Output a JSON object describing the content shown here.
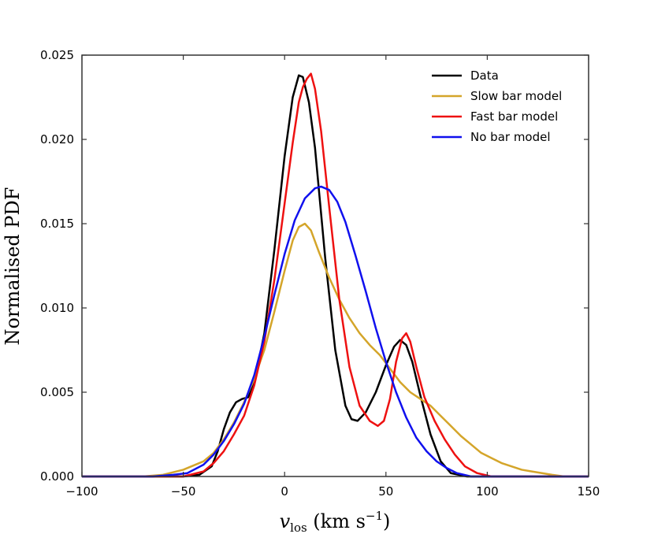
{
  "chart_data": {
    "type": "line",
    "title": "",
    "xlabel": "v_los (km s^-1)",
    "xlabel_parts": {
      "symbol": "v",
      "subscript": "los",
      "open": " (km s",
      "superscript": "−1",
      "close": ")"
    },
    "ylabel": "Normalised PDF",
    "xlim": [
      -100,
      150
    ],
    "ylim": [
      0,
      0.025
    ],
    "x_ticks": [
      -100,
      -50,
      0,
      50,
      100,
      150
    ],
    "x_tick_labels": [
      "−100",
      "−50",
      "0",
      "50",
      "100",
      "150"
    ],
    "y_ticks": [
      0,
      0.005,
      0.01,
      0.015,
      0.02,
      0.025
    ],
    "y_tick_labels": [
      "0.000",
      "0.005",
      "0.010",
      "0.015",
      "0.020",
      "0.025"
    ],
    "grid": false,
    "legend_position": "top-right",
    "series": [
      {
        "name": "Data",
        "color": "#000000",
        "points": [
          [
            -100,
            0
          ],
          [
            -50,
            0
          ],
          [
            -42,
            0.0001
          ],
          [
            -36,
            0.0006
          ],
          [
            -33,
            0.0015
          ],
          [
            -30,
            0.0028
          ],
          [
            -27,
            0.0038
          ],
          [
            -24,
            0.0044
          ],
          [
            -21,
            0.0046
          ],
          [
            -18,
            0.0047
          ],
          [
            -15,
            0.0055
          ],
          [
            -10,
            0.0085
          ],
          [
            -5,
            0.0135
          ],
          [
            0,
            0.019
          ],
          [
            4,
            0.0225
          ],
          [
            7,
            0.0238
          ],
          [
            9,
            0.0237
          ],
          [
            12,
            0.0222
          ],
          [
            15,
            0.0195
          ],
          [
            20,
            0.013
          ],
          [
            25,
            0.0075
          ],
          [
            30,
            0.0042
          ],
          [
            33,
            0.0034
          ],
          [
            36,
            0.0033
          ],
          [
            40,
            0.0038
          ],
          [
            45,
            0.005
          ],
          [
            50,
            0.0066
          ],
          [
            54,
            0.0077
          ],
          [
            57,
            0.0081
          ],
          [
            60,
            0.0078
          ],
          [
            63,
            0.0068
          ],
          [
            67,
            0.0048
          ],
          [
            72,
            0.0025
          ],
          [
            77,
            0.0009
          ],
          [
            82,
            0.0002
          ],
          [
            90,
            0
          ],
          [
            150,
            0
          ]
        ]
      },
      {
        "name": "Slow bar model",
        "color": "#d4a52a",
        "points": [
          [
            -100,
            0
          ],
          [
            -70,
            0
          ],
          [
            -60,
            0.0001
          ],
          [
            -50,
            0.0004
          ],
          [
            -40,
            0.0009
          ],
          [
            -35,
            0.0014
          ],
          [
            -30,
            0.0022
          ],
          [
            -25,
            0.0032
          ],
          [
            -20,
            0.0044
          ],
          [
            -15,
            0.0058
          ],
          [
            -10,
            0.0075
          ],
          [
            -5,
            0.0098
          ],
          [
            0,
            0.0122
          ],
          [
            4,
            0.014
          ],
          [
            7,
            0.0148
          ],
          [
            10,
            0.015
          ],
          [
            13,
            0.0146
          ],
          [
            17,
            0.0133
          ],
          [
            22,
            0.0118
          ],
          [
            27,
            0.0105
          ],
          [
            32,
            0.0094
          ],
          [
            37,
            0.0085
          ],
          [
            42,
            0.0078
          ],
          [
            47,
            0.0072
          ],
          [
            52,
            0.0064
          ],
          [
            57,
            0.0056
          ],
          [
            62,
            0.005
          ],
          [
            67,
            0.0046
          ],
          [
            72,
            0.0042
          ],
          [
            77,
            0.0036
          ],
          [
            82,
            0.003
          ],
          [
            87,
            0.0024
          ],
          [
            92,
            0.0019
          ],
          [
            97,
            0.0014
          ],
          [
            102,
            0.0011
          ],
          [
            107,
            0.0008
          ],
          [
            112,
            0.0006
          ],
          [
            117,
            0.0004
          ],
          [
            122,
            0.0003
          ],
          [
            127,
            0.0002
          ],
          [
            132,
            0.0001
          ],
          [
            138,
            0
          ],
          [
            150,
            0
          ]
        ]
      },
      {
        "name": "Fast bar model",
        "color": "#ee1111",
        "points": [
          [
            -100,
            0
          ],
          [
            -50,
            0
          ],
          [
            -40,
            0.0003
          ],
          [
            -35,
            0.0008
          ],
          [
            -30,
            0.0015
          ],
          [
            -25,
            0.0025
          ],
          [
            -20,
            0.0036
          ],
          [
            -15,
            0.0054
          ],
          [
            -10,
            0.008
          ],
          [
            -5,
            0.0117
          ],
          [
            0,
            0.0162
          ],
          [
            4,
            0.0198
          ],
          [
            7,
            0.0222
          ],
          [
            9,
            0.0231
          ],
          [
            11,
            0.0236
          ],
          [
            13,
            0.0239
          ],
          [
            15,
            0.023
          ],
          [
            18,
            0.0205
          ],
          [
            22,
            0.016
          ],
          [
            27,
            0.0105
          ],
          [
            32,
            0.0065
          ],
          [
            37,
            0.0042
          ],
          [
            42,
            0.0033
          ],
          [
            46,
            0.003
          ],
          [
            49,
            0.0033
          ],
          [
            52,
            0.0046
          ],
          [
            55,
            0.0068
          ],
          [
            58,
            0.0082
          ],
          [
            60,
            0.0085
          ],
          [
            62,
            0.008
          ],
          [
            65,
            0.0065
          ],
          [
            69,
            0.0047
          ],
          [
            74,
            0.0033
          ],
          [
            79,
            0.0022
          ],
          [
            84,
            0.0013
          ],
          [
            89,
            0.0006
          ],
          [
            95,
            0.0002
          ],
          [
            102,
            0
          ],
          [
            150,
            0
          ]
        ]
      },
      {
        "name": "No bar model",
        "color": "#1010ee",
        "points": [
          [
            -100,
            0
          ],
          [
            -65,
            0
          ],
          [
            -55,
            0.0001
          ],
          [
            -48,
            0.0002
          ],
          [
            -40,
            0.0007
          ],
          [
            -35,
            0.0013
          ],
          [
            -30,
            0.0021
          ],
          [
            -25,
            0.0031
          ],
          [
            -20,
            0.0043
          ],
          [
            -15,
            0.006
          ],
          [
            -10,
            0.0083
          ],
          [
            -5,
            0.0108
          ],
          [
            0,
            0.0132
          ],
          [
            5,
            0.0152
          ],
          [
            10,
            0.0165
          ],
          [
            15,
            0.0171
          ],
          [
            18,
            0.0172
          ],
          [
            22,
            0.017
          ],
          [
            26,
            0.0163
          ],
          [
            30,
            0.0151
          ],
          [
            35,
            0.0131
          ],
          [
            40,
            0.011
          ],
          [
            45,
            0.0088
          ],
          [
            50,
            0.0068
          ],
          [
            55,
            0.005
          ],
          [
            60,
            0.0035
          ],
          [
            65,
            0.0023
          ],
          [
            70,
            0.0015
          ],
          [
            75,
            0.0009
          ],
          [
            80,
            0.0005
          ],
          [
            85,
            0.0002
          ],
          [
            92,
            0
          ],
          [
            150,
            0
          ]
        ]
      }
    ]
  }
}
